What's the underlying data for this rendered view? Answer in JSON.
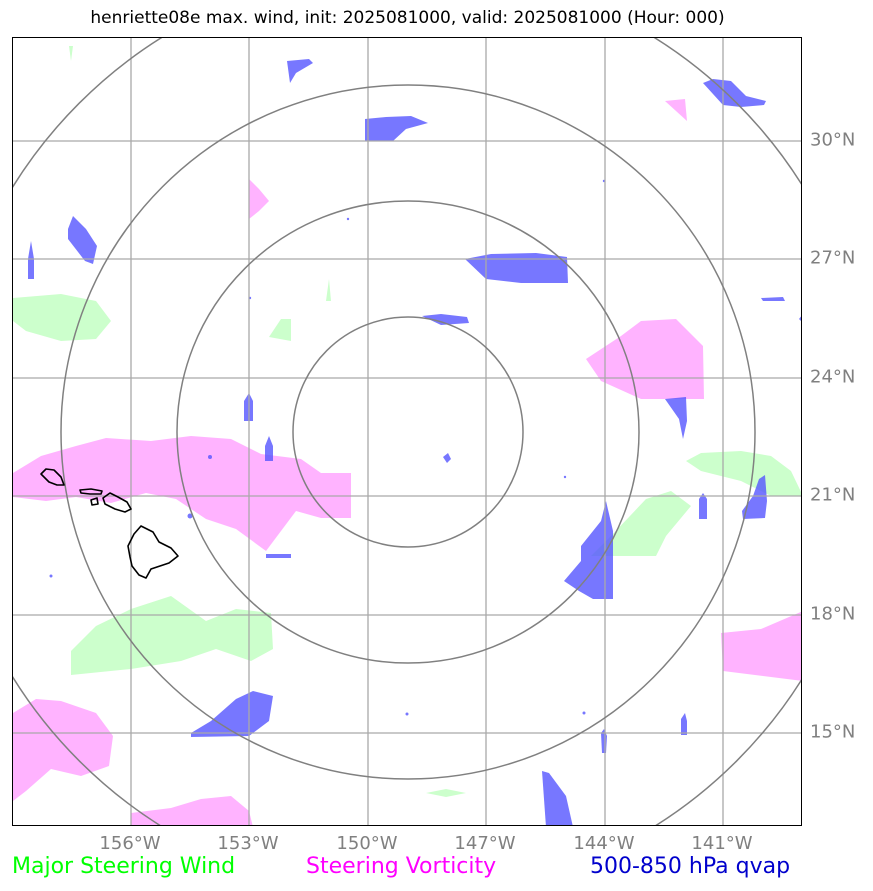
{
  "title": "henriette08e max. wind, init: 2025081000, valid: 2025081000 (Hour: 000)",
  "lon_ticks": [
    "156°W",
    "153°W",
    "150°W",
    "147°W",
    "144°W",
    "141°W"
  ],
  "lat_ticks": [
    "30°N",
    "27°N",
    "24°N",
    "21°N",
    "18°N",
    "15°N"
  ],
  "legend": {
    "wind": {
      "label": "Major Steering Wind",
      "color": "#00ff00"
    },
    "vorticity": {
      "label": "Steering Vorticity",
      "color": "#ff00ff"
    },
    "qvap": {
      "label": "500-850 hPa qvap",
      "color": "#0000cc"
    }
  },
  "colors": {
    "grid": "#a9a9a9",
    "rings": "#808080",
    "wind_fill": "#ccffcc",
    "vorticity_fill": "#ffb3ff",
    "qvap_fill": "#5555ff",
    "coastline": "#000000"
  },
  "map": {
    "lon_range": [
      "159°W",
      "139°W"
    ],
    "lat_range": [
      "13°N",
      "32°N"
    ],
    "range_rings": 4,
    "features": [
      "hawaiian-islands-coastline"
    ]
  }
}
